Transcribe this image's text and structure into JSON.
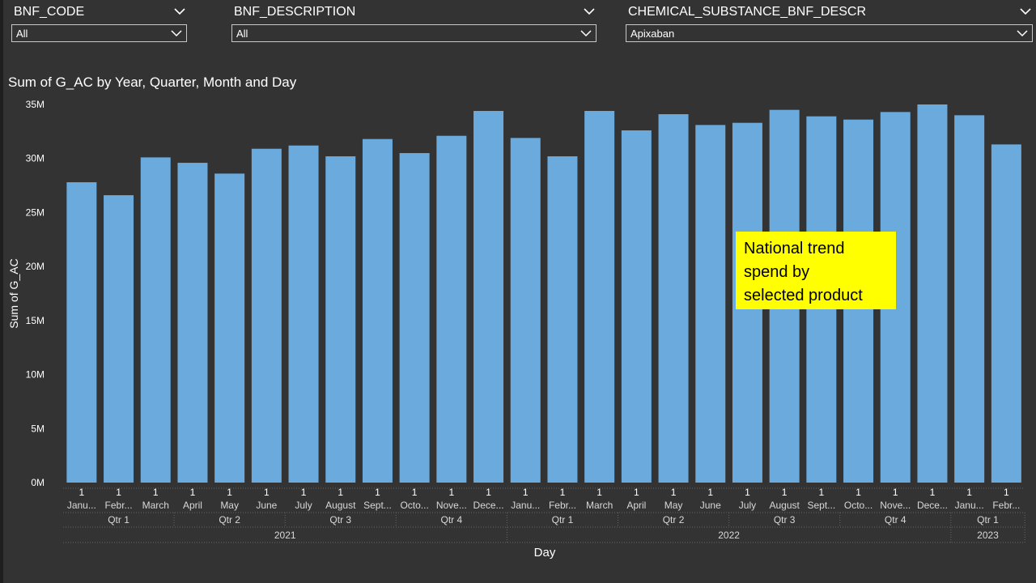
{
  "slicers": [
    {
      "title": "BNF_CODE",
      "value": "All"
    },
    {
      "title": "BNF_DESCRIPTION",
      "value": "All"
    },
    {
      "title": "CHEMICAL_SUBSTANCE_BNF_DESCR",
      "value": "Apixaban"
    }
  ],
  "annotation": {
    "lines": [
      "National trend",
      "spend by",
      "selected product"
    ]
  },
  "colors": {
    "bar": "#6aaadc",
    "background": "#333333",
    "highlight": "#ffff00"
  },
  "icons": [
    "chevron-down-icon"
  ],
  "chart_data": {
    "type": "bar",
    "title": "Sum of G_AC by Year, Quarter, Month and Day",
    "xlabel": "Day",
    "ylabel": "Sum of G_AC",
    "ylim": [
      0,
      35000000
    ],
    "yticks": [
      "0M",
      "5M",
      "10M",
      "15M",
      "20M",
      "25M",
      "30M",
      "35M"
    ],
    "day_label": "1",
    "months": [
      "Janu...",
      "Febr...",
      "March",
      "April",
      "May",
      "June",
      "July",
      "August",
      "Sept...",
      "Octo...",
      "Nove...",
      "Dece...",
      "Janu...",
      "Febr...",
      "March",
      "April",
      "May",
      "June",
      "July",
      "August",
      "Sept...",
      "Octo...",
      "Nove...",
      "Dece...",
      "Janu...",
      "Febr..."
    ],
    "values": [
      27800000,
      26600000,
      30100000,
      29600000,
      28600000,
      30900000,
      31200000,
      30200000,
      31800000,
      30500000,
      32100000,
      34400000,
      31900000,
      30200000,
      34400000,
      32600000,
      34100000,
      33100000,
      33300000,
      34500000,
      33900000,
      33600000,
      34300000,
      35000000,
      34000000,
      31300000
    ],
    "quarters": [
      {
        "label": "Qtr 1",
        "span": 3
      },
      {
        "label": "Qtr 2",
        "span": 3
      },
      {
        "label": "Qtr 3",
        "span": 3
      },
      {
        "label": "Qtr 4",
        "span": 3
      },
      {
        "label": "Qtr 1",
        "span": 3
      },
      {
        "label": "Qtr 2",
        "span": 3
      },
      {
        "label": "Qtr 3",
        "span": 3
      },
      {
        "label": "Qtr 4",
        "span": 3
      },
      {
        "label": "Qtr 1",
        "span": 2
      }
    ],
    "years": [
      {
        "label": "2021",
        "span": 12
      },
      {
        "label": "2022",
        "span": 12
      },
      {
        "label": "2023",
        "span": 2
      }
    ],
    "grid": false,
    "legend": "none"
  }
}
